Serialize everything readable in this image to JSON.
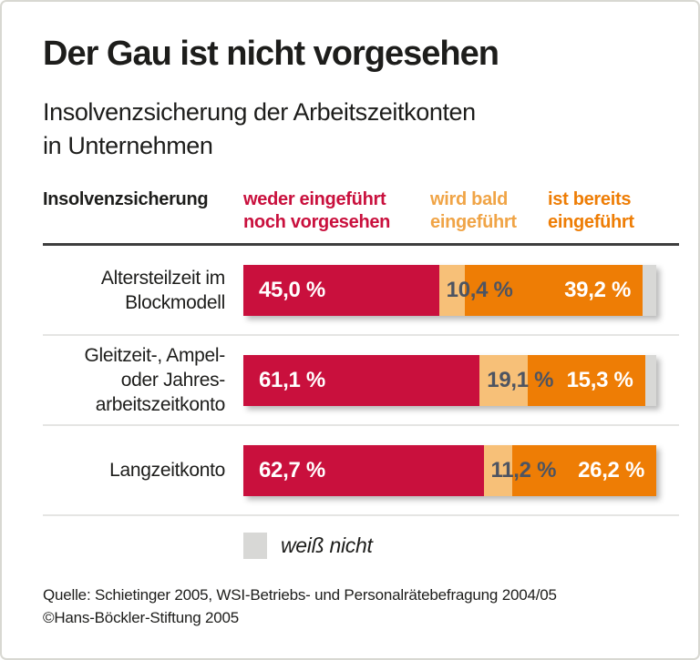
{
  "header": {
    "title": "Der Gau ist nicht vorgesehen",
    "subtitle_lines": [
      "Insolvenzsicherung der Arbeitszeitkonten",
      "in Unternehmen"
    ]
  },
  "columns_header": {
    "row_title": "Insolvenzsicherung",
    "columns": [
      {
        "lines": [
          "weder eingeführt",
          "noch vorgesehen"
        ],
        "color": "#c9103d"
      },
      {
        "lines": [
          "wird bald",
          "eingeführt"
        ],
        "color": "#f0a446"
      },
      {
        "lines": [
          "ist bereits",
          "eingeführt"
        ],
        "color": "#ee7d05"
      }
    ]
  },
  "chart_data": {
    "type": "bar",
    "orientation": "horizontal",
    "stacked": true,
    "unit": "%",
    "xlim": [
      0,
      100
    ],
    "grid": false,
    "legend_position": "top-columns",
    "categories": [
      {
        "label_lines": [
          "Altersteilzeit im",
          "Blockmodell"
        ]
      },
      {
        "label_lines": [
          "Gleitzeit-, Ampel-",
          "oder Jahres-",
          "arbeitszeitkonto"
        ]
      },
      {
        "label_lines": [
          "Langzeitkonto"
        ]
      }
    ],
    "series": [
      {
        "key": "weder-eingefuehrt-noch-vorgesehen",
        "name": "weder eingeführt noch vorgesehen",
        "color": "#c9103d",
        "text_color": "#ffffff",
        "values": [
          45.0,
          61.1,
          62.7
        ],
        "labels": [
          "45,0 %",
          "61,1 %",
          "62,7 %"
        ]
      },
      {
        "key": "wird-bald-eingefuehrt",
        "name": "wird bald eingeführt",
        "color": "#f7c078",
        "text_color": "#4d5462",
        "values": [
          10.4,
          19.1,
          11.2
        ],
        "labels": [
          "10,4 %",
          "19,1 %",
          "11,2 %"
        ]
      },
      {
        "key": "ist-bereits-eingefuehrt",
        "name": "ist bereits eingeführt",
        "color": "#ee7d05",
        "text_color": "#ffffff",
        "values": [
          39.2,
          15.3,
          26.2
        ],
        "labels": [
          "39,2 %",
          "15,3 %",
          "26,2 %"
        ]
      },
      {
        "key": "weiss-nicht",
        "name": "weiß nicht",
        "color": "#d8d8d6",
        "text_color": "#4d5462",
        "values": [
          5.4,
          4.5,
          0.0
        ],
        "labels": [
          "",
          "",
          ""
        ]
      }
    ]
  },
  "legend": {
    "label": "weiß nicht",
    "color": "#d8d8d6"
  },
  "footer": {
    "source_line": "Quelle: Schietinger 2005, WSI-Betriebs- und Personalrätebefragung 2004/05",
    "copyright_line": "©Hans-Böckler-Stiftung 2005"
  }
}
